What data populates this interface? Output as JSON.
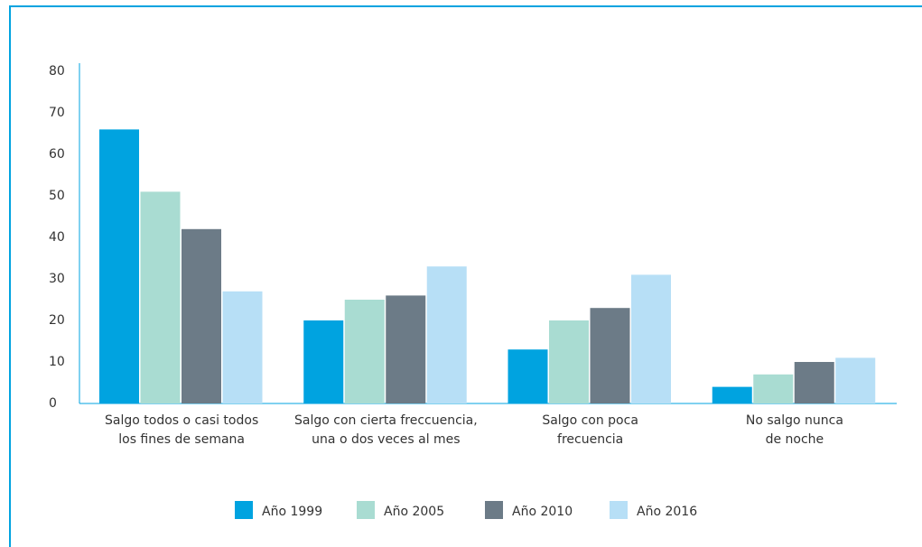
{
  "chart_data": {
    "type": "bar",
    "categories": [
      [
        "Salgo todos o casi todos",
        "los fines de semana"
      ],
      [
        "Salgo con cierta freccuencia,",
        "una o dos veces al mes"
      ],
      [
        "Salgo con poca",
        "frecuencia"
      ],
      [
        "No salgo nunca",
        "de noche"
      ]
    ],
    "series": [
      {
        "name": "Año 1999",
        "color": "#00a3e0",
        "values": [
          66,
          20,
          13,
          4
        ]
      },
      {
        "name": "Año 2005",
        "color": "#a9dcd2",
        "values": [
          51,
          25,
          20,
          7
        ]
      },
      {
        "name": "Año 2010",
        "color": "#6c7b87",
        "values": [
          42,
          26,
          23,
          10
        ]
      },
      {
        "name": "Año 2016",
        "color": "#b7dff6",
        "values": [
          27,
          33,
          31,
          11
        ]
      }
    ],
    "ylim": [
      0,
      80
    ],
    "yticks": [
      0,
      10,
      20,
      30,
      40,
      50,
      60,
      70,
      80
    ],
    "grid": false,
    "legend": "bottom"
  }
}
